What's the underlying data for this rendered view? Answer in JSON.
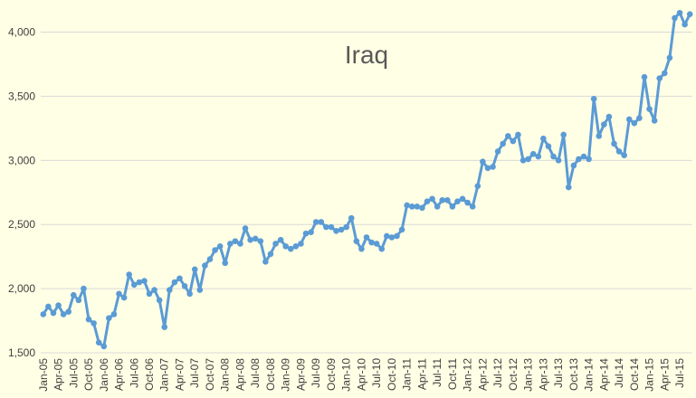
{
  "chart_data": {
    "type": "line",
    "title": "Iraq",
    "categories": [
      "Jan-05",
      null,
      null,
      "Apr-05",
      null,
      null,
      "Jul-05",
      null,
      null,
      "Oct-05",
      null,
      null,
      "Jan-06",
      null,
      null,
      "Apr-06",
      null,
      null,
      "Jul-06",
      null,
      null,
      "Oct-06",
      null,
      null,
      "Jan-07",
      null,
      null,
      "Apr-07",
      null,
      null,
      "Jul-07",
      null,
      null,
      "Oct-07",
      null,
      null,
      "Jan-08",
      null,
      null,
      "Apr-08",
      null,
      null,
      "Jul-08",
      null,
      null,
      "Oct-08",
      null,
      null,
      "Jan-09",
      null,
      null,
      "Apr-09",
      null,
      null,
      "Jul-09",
      null,
      null,
      "Oct-09",
      null,
      null,
      "Jan-10",
      null,
      null,
      "Apr-10",
      null,
      null,
      "Jul-10",
      null,
      null,
      "Oct-10",
      null,
      null,
      "Jan-11",
      null,
      null,
      "Apr-11",
      null,
      null,
      "Jul-11",
      null,
      null,
      "Oct-11",
      null,
      null,
      "Jan-12",
      null,
      null,
      "Apr-12",
      null,
      null,
      "Jul-12",
      null,
      null,
      "Oct-12",
      null,
      null,
      "Jan-13",
      null,
      null,
      "Apr-13",
      null,
      null,
      "Jul-13",
      null,
      null,
      "Oct-13",
      null,
      null,
      "Jan-14",
      null,
      null,
      "Apr-14",
      null,
      null,
      "Jul-14",
      null,
      null,
      "Oct-14",
      null,
      null,
      "Jan-15",
      null,
      null,
      "Apr-15",
      null,
      null,
      "Jul-15",
      null,
      null
    ],
    "series": [
      {
        "name": "Iraq",
        "color": "#5b9bd5",
        "values": [
          1800,
          1860,
          1810,
          1870,
          1800,
          1820,
          1950,
          1910,
          2000,
          1760,
          1730,
          1580,
          1550,
          1770,
          1800,
          1960,
          1930,
          2110,
          2030,
          2050,
          2060,
          1960,
          1990,
          1910,
          1700,
          1990,
          2050,
          2080,
          2020,
          1960,
          2150,
          1990,
          2180,
          2230,
          2300,
          2330,
          2200,
          2350,
          2370,
          2350,
          2470,
          2380,
          2390,
          2370,
          2210,
          2270,
          2350,
          2380,
          2330,
          2310,
          2330,
          2350,
          2430,
          2440,
          2520,
          2520,
          2480,
          2480,
          2450,
          2460,
          2480,
          2550,
          2370,
          2310,
          2400,
          2360,
          2350,
          2310,
          2410,
          2400,
          2410,
          2460,
          2650,
          2640,
          2640,
          2630,
          2680,
          2700,
          2640,
          2690,
          2690,
          2640,
          2680,
          2700,
          2670,
          2640,
          2800,
          2990,
          2940,
          2950,
          3070,
          3130,
          3190,
          3150,
          3200,
          3000,
          3010,
          3050,
          3030,
          3170,
          3110,
          3030,
          3000,
          3200,
          2790,
          2960,
          3010,
          3030,
          3010,
          3480,
          3190,
          3280,
          3340,
          3130,
          3070,
          3040,
          3320,
          3290,
          3330,
          3650,
          3400,
          3310,
          3640,
          3680,
          3800,
          4110,
          4150,
          4060,
          4140
        ]
      }
    ],
    "ylim": [
      1500,
      4180
    ],
    "yticks": [
      {
        "value": 1500,
        "label": "1,500"
      },
      {
        "value": 2000,
        "label": "2,000"
      },
      {
        "value": 2500,
        "label": "2,500"
      },
      {
        "value": 3000,
        "label": "3,000"
      },
      {
        "value": 3500,
        "label": "3,500"
      },
      {
        "value": 4000,
        "label": "4,000"
      }
    ],
    "grid": true
  }
}
